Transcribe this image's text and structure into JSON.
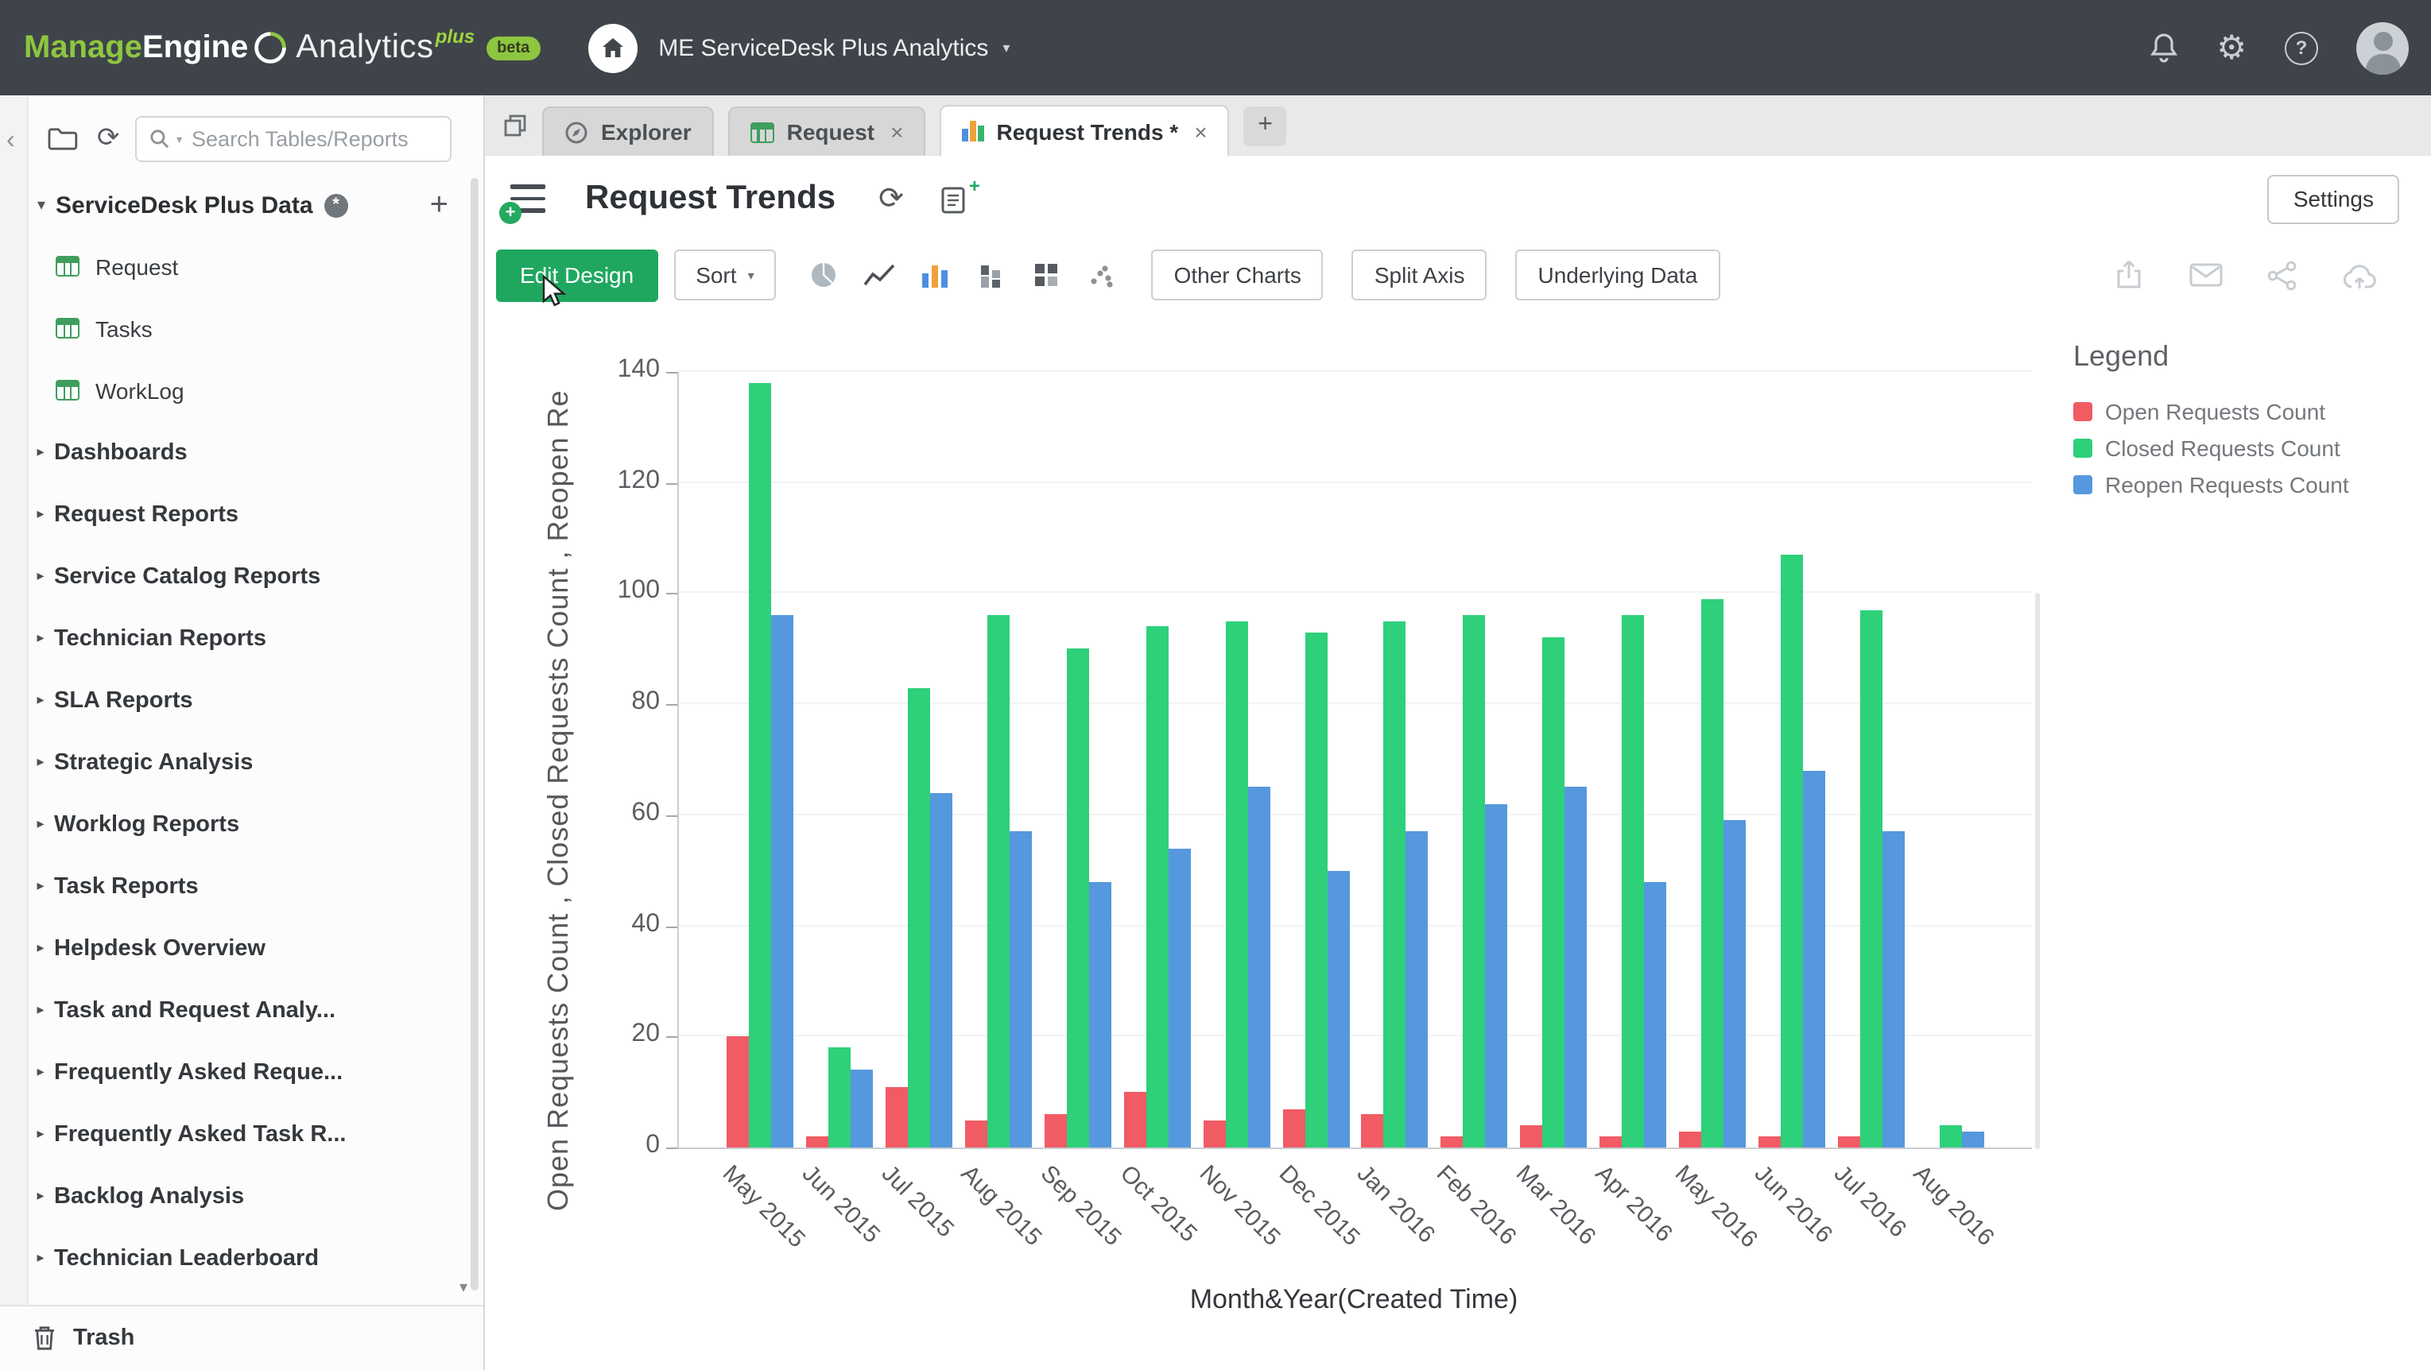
{
  "topbar": {
    "brand_manage": "Manage",
    "brand_engine": "Engine",
    "brand_product": "Analytics",
    "brand_plus": "plus",
    "brand_beta": "beta",
    "workspace": "ME ServiceDesk Plus Analytics"
  },
  "icons": {
    "chevron_left": "‹",
    "caret_down": "▾",
    "caret_right": "▸",
    "refresh": "⟳",
    "gear": "⚙",
    "question": "?",
    "close": "×",
    "plus": "+",
    "asterisk": "*"
  },
  "sidebar": {
    "search_placeholder": "Search Tables/Reports",
    "workspace_label": "ServiceDesk Plus Data",
    "tables": [
      "Request",
      "Tasks",
      "WorkLog"
    ],
    "folders": [
      "Dashboards",
      "Request Reports",
      "Service Catalog Reports",
      "Technician Reports",
      "SLA Reports",
      "Strategic Analysis",
      "Worklog Reports",
      "Task Reports",
      "Helpdesk Overview",
      "Task and Request Analy...",
      "Frequently Asked Reque...",
      "Frequently Asked Task R...",
      "Backlog Analysis",
      "Technician Leaderboard"
    ],
    "trash": "Trash"
  },
  "tabs": {
    "explorer": "Explorer",
    "request": "Request",
    "active": "Request Trends *"
  },
  "view": {
    "title": "Request Trends",
    "settings": "Settings"
  },
  "toolbar": {
    "edit_design": "Edit Design",
    "sort": "Sort",
    "other_charts": "Other Charts",
    "split_axis": "Split Axis",
    "underlying_data": "Underlying Data"
  },
  "chart_data": {
    "type": "bar",
    "title": "Request Trends",
    "xlabel": "Month&Year(Created Time)",
    "ylabel": "Open Requests Count , Closed Requests Count , Reopen Re",
    "legend_title": "Legend",
    "legend_position": "right",
    "grid": "faint-horizontal",
    "ylim": [
      0,
      140
    ],
    "yticks": [
      0,
      20,
      40,
      60,
      80,
      100,
      120,
      140
    ],
    "categories": [
      "May 2015",
      "Jun 2015",
      "Jul 2015",
      "Aug 2015",
      "Sep 2015",
      "Oct 2015",
      "Nov 2015",
      "Dec 2015",
      "Jan 2016",
      "Feb 2016",
      "Mar 2016",
      "Apr 2016",
      "May 2016",
      "Jun 2016",
      "Jul 2016",
      "Aug 2016"
    ],
    "series": [
      {
        "name": "Open Requests Count",
        "color": "#f15b64",
        "values": [
          20,
          2,
          11,
          5,
          6,
          10,
          5,
          7,
          6,
          2,
          4,
          2,
          3,
          2,
          2,
          0
        ]
      },
      {
        "name": "Closed Requests Count",
        "color": "#2ed07a",
        "values": [
          138,
          18,
          83,
          96,
          90,
          94,
          95,
          93,
          95,
          96,
          92,
          96,
          99,
          107,
          97,
          4
        ]
      },
      {
        "name": "Reopen Requests Count",
        "color": "#5598dd",
        "values": [
          96,
          14,
          64,
          57,
          48,
          54,
          65,
          50,
          57,
          62,
          65,
          48,
          59,
          68,
          57,
          3
        ]
      }
    ]
  }
}
